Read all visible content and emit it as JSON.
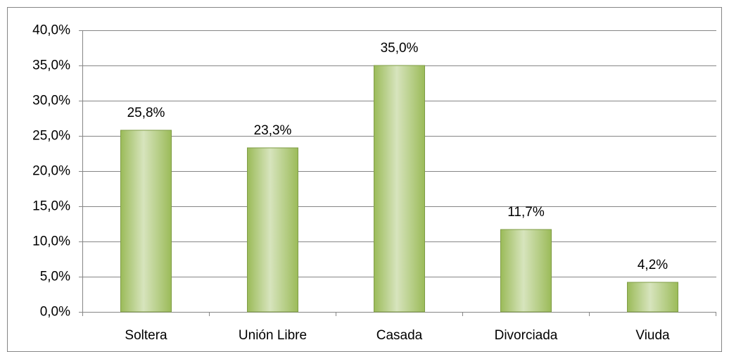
{
  "chart_data": {
    "type": "bar",
    "categories": [
      "Soltera",
      "Unión Libre",
      "Casada",
      "Divorciada",
      "Viuda"
    ],
    "values": [
      25.8,
      23.3,
      35.0,
      11.7,
      4.2
    ],
    "value_labels": [
      "25,8%",
      "23,3%",
      "35,0%",
      "11,7%",
      "4,2%"
    ],
    "color": "#9bbb59",
    "ylim": [
      0,
      40
    ],
    "yticks": [
      {
        "value": 0,
        "label": "0,0%"
      },
      {
        "value": 5,
        "label": "5,0%"
      },
      {
        "value": 10,
        "label": "10,0%"
      },
      {
        "value": 15,
        "label": "15,0%"
      },
      {
        "value": 20,
        "label": "20,0%"
      },
      {
        "value": 25,
        "label": "25,0%"
      },
      {
        "value": 30,
        "label": "30,0%"
      },
      {
        "value": 35,
        "label": "35,0%"
      },
      {
        "value": 40,
        "label": "40,0%"
      }
    ],
    "grid": true
  }
}
